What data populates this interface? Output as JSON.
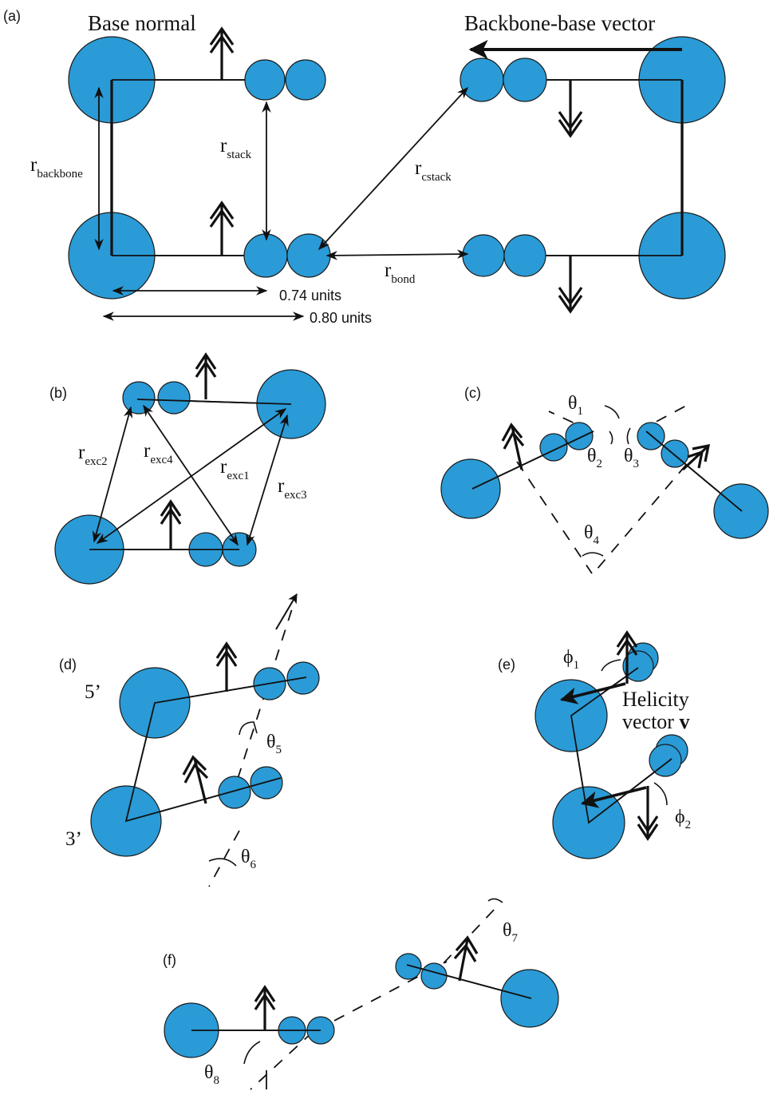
{
  "panels": {
    "a": {
      "label": "(a)",
      "base_normal": "Base normal",
      "backbone_base_vector": "Backbone-base vector",
      "r_backbone": {
        "r": "r",
        "sub": "backbone"
      },
      "r_stack": {
        "r": "r",
        "sub": "stack"
      },
      "r_cstack": {
        "r": "r",
        "sub": "cstack"
      },
      "r_bond": {
        "r": "r",
        "sub": "bond"
      },
      "dist_074": "0.74 units",
      "dist_080": "0.80 units"
    },
    "b": {
      "label": "(b)",
      "r_exc1": {
        "r": "r",
        "sub": "exc1"
      },
      "r_exc2": {
        "r": "r",
        "sub": "exc2"
      },
      "r_exc3": {
        "r": "r",
        "sub": "exc3"
      },
      "r_exc4": {
        "r": "r",
        "sub": "exc4"
      }
    },
    "c": {
      "label": "(c)",
      "theta1": {
        "sym": "θ",
        "sub": "1"
      },
      "theta2": {
        "sym": "θ",
        "sub": "2"
      },
      "theta3": {
        "sym": "θ",
        "sub": "3"
      },
      "theta4": {
        "sym": "θ",
        "sub": "4"
      }
    },
    "d": {
      "label": "(d)",
      "five_prime": "5’",
      "three_prime": "3’",
      "theta5": {
        "sym": "θ",
        "sub": "5"
      },
      "theta6": {
        "sym": "θ",
        "sub": "6"
      }
    },
    "e": {
      "label": "(e)",
      "phi1": {
        "sym": "ϕ",
        "sub": "1"
      },
      "phi2": {
        "sym": "ϕ",
        "sub": "2"
      },
      "helicity_line1": "Helicity",
      "helicity_line2": "vector ",
      "helicity_bold": "v"
    },
    "f": {
      "label": "(f)",
      "theta7": {
        "sym": "θ",
        "sub": "7"
      },
      "theta8": {
        "sym": "θ",
        "sub": "8"
      }
    }
  },
  "colors": {
    "nucleotide": "#2a9bd6",
    "line": "#111111"
  }
}
